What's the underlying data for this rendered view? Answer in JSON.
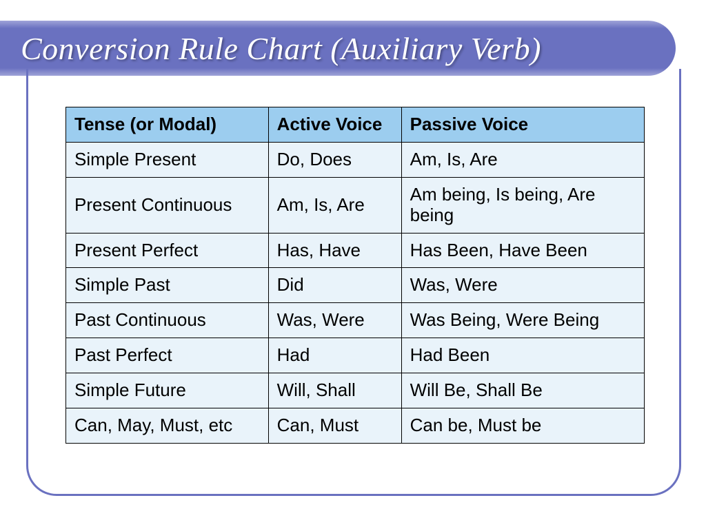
{
  "title": "Conversion Rule Chart (Auxiliary Verb)",
  "colors": {
    "title_bar_bg": "#6A71C0",
    "title_bar_border": "#9FA3D8",
    "title_text": "#FFFFFF",
    "frame_border": "#6A71C0",
    "table_header_bg": "#9CCDEF",
    "table_row_bg": "#E9F3FA",
    "table_border": "#000000",
    "text": "#000000"
  },
  "table": {
    "columns": [
      "Tense (or Modal)",
      "Active Voice",
      "Passive Voice"
    ],
    "rows": [
      [
        "Simple Present",
        "Do, Does",
        "Am, Is, Are"
      ],
      [
        "Present Continuous",
        "Am, Is, Are",
        "Am being, Is being, Are being"
      ],
      [
        "Present Perfect",
        "Has, Have",
        "Has Been, Have Been"
      ],
      [
        "Simple Past",
        "Did",
        "Was, Were"
      ],
      [
        "Past Continuous",
        "Was, Were",
        "Was Being, Were Being"
      ],
      [
        "Past Perfect",
        "Had",
        "Had Been"
      ],
      [
        "Simple Future",
        "Will, Shall",
        "Will Be, Shall Be"
      ],
      [
        "Can, May, Must, etc",
        "Can, Must",
        "Can be, Must be"
      ]
    ],
    "header_fontsize": 26,
    "cell_fontsize": 26,
    "col_widths_pct": [
      35,
      23,
      42
    ]
  }
}
